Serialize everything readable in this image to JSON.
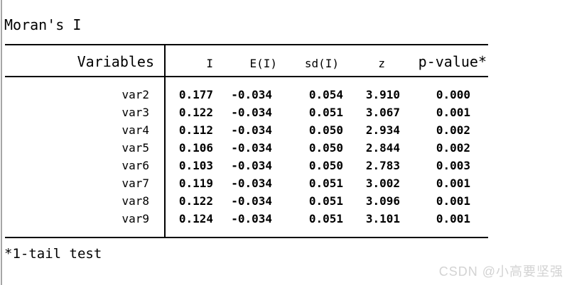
{
  "title": "Moran's I",
  "table": {
    "headers": {
      "variables": "Variables",
      "i": "I",
      "e_i": "E(I)",
      "sd_i": "sd(I)",
      "z": "z",
      "p_value": "p-value*"
    },
    "rows": [
      {
        "variable": "var2",
        "i": "0.177",
        "e_i": "-0.034",
        "sd_i": "0.054",
        "z": "3.910",
        "p": "0.000"
      },
      {
        "variable": "var3",
        "i": "0.122",
        "e_i": "-0.034",
        "sd_i": "0.051",
        "z": "3.067",
        "p": "0.001"
      },
      {
        "variable": "var4",
        "i": "0.112",
        "e_i": "-0.034",
        "sd_i": "0.050",
        "z": "2.934",
        "p": "0.002"
      },
      {
        "variable": "var5",
        "i": "0.106",
        "e_i": "-0.034",
        "sd_i": "0.050",
        "z": "2.844",
        "p": "0.002"
      },
      {
        "variable": "var6",
        "i": "0.103",
        "e_i": "-0.034",
        "sd_i": "0.050",
        "z": "2.783",
        "p": "0.003"
      },
      {
        "variable": "var7",
        "i": "0.119",
        "e_i": "-0.034",
        "sd_i": "0.051",
        "z": "3.002",
        "p": "0.001"
      },
      {
        "variable": "var8",
        "i": "0.122",
        "e_i": "-0.034",
        "sd_i": "0.051",
        "z": "3.096",
        "p": "0.001"
      },
      {
        "variable": "var9",
        "i": "0.124",
        "e_i": "-0.034",
        "sd_i": "0.051",
        "z": "3.101",
        "p": "0.001"
      }
    ]
  },
  "footnote": "*1-tail test",
  "watermark": "CSDN @小高要坚强",
  "colors": {
    "text": "#000000",
    "rule": "#000000",
    "watermark": "#d3d3d3",
    "window_edge": "#a6a6a6",
    "background": "#ffffff"
  }
}
